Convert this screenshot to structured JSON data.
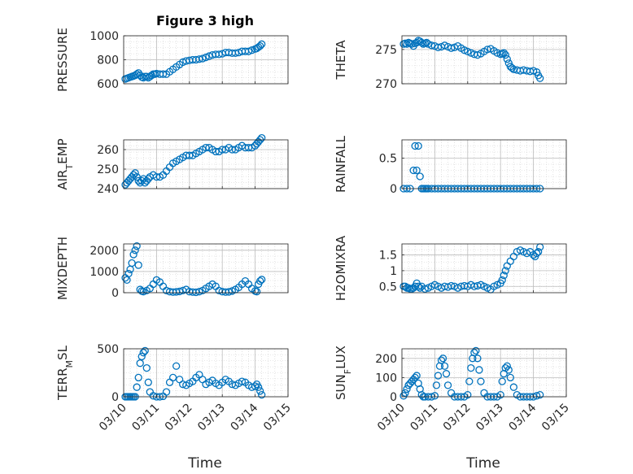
{
  "title": "Figure 3 high",
  "x_axis_label": "Time",
  "x_ticks": [
    "03/10",
    "03/11",
    "03/12",
    "03/13",
    "03/14",
    "03/15"
  ],
  "marker_color": "#0072BD",
  "chart_data": [
    {
      "type": "scatter",
      "ylabel": "PRESSURE",
      "ylabel_sub": "",
      "xlim": [
        0,
        5
      ],
      "ylim": [
        600,
        1000
      ],
      "yticks": [
        600,
        800,
        1000
      ],
      "yticklabels": [
        "600",
        "800",
        "1000"
      ],
      "grid": true,
      "x": [
        0.05,
        0.1,
        0.15,
        0.2,
        0.25,
        0.3,
        0.35,
        0.4,
        0.45,
        0.5,
        0.55,
        0.6,
        0.65,
        0.7,
        0.75,
        0.8,
        0.85,
        0.9,
        0.95,
        1.0,
        1.1,
        1.2,
        1.3,
        1.4,
        1.5,
        1.6,
        1.7,
        1.8,
        1.9,
        2.0,
        2.1,
        2.2,
        2.3,
        2.4,
        2.5,
        2.6,
        2.7,
        2.8,
        2.9,
        3.0,
        3.1,
        3.2,
        3.3,
        3.4,
        3.5,
        3.6,
        3.7,
        3.8,
        3.9,
        4.0,
        4.05,
        4.1,
        4.15,
        4.2
      ],
      "y": [
        640,
        645,
        650,
        655,
        660,
        665,
        670,
        680,
        690,
        670,
        655,
        650,
        660,
        660,
        650,
        660,
        670,
        680,
        680,
        685,
        680,
        680,
        680,
        700,
        720,
        740,
        760,
        780,
        790,
        795,
        800,
        800,
        805,
        810,
        820,
        830,
        840,
        845,
        845,
        850,
        860,
        860,
        855,
        855,
        860,
        870,
        870,
        870,
        880,
        890,
        895,
        905,
        915,
        930
      ]
    },
    {
      "type": "scatter",
      "ylabel": "THETA",
      "ylabel_sub": "",
      "xlim": [
        0,
        5
      ],
      "ylim": [
        270,
        277
      ],
      "yticks": [
        270,
        275
      ],
      "yticklabels": [
        "270",
        "275"
      ],
      "grid": true,
      "x": [
        0.05,
        0.1,
        0.15,
        0.2,
        0.25,
        0.3,
        0.35,
        0.4,
        0.45,
        0.5,
        0.55,
        0.6,
        0.65,
        0.7,
        0.75,
        0.8,
        0.9,
        1.0,
        1.1,
        1.2,
        1.3,
        1.4,
        1.5,
        1.6,
        1.7,
        1.8,
        1.9,
        2.0,
        2.1,
        2.2,
        2.3,
        2.4,
        2.5,
        2.6,
        2.7,
        2.8,
        2.9,
        3.0,
        3.05,
        3.1,
        3.15,
        3.2,
        3.25,
        3.3,
        3.35,
        3.4,
        3.5,
        3.6,
        3.7,
        3.8,
        3.9,
        4.0,
        4.1,
        4.15,
        4.2
      ],
      "y": [
        275.8,
        275.9,
        275.8,
        276.0,
        275.9,
        275.8,
        275.5,
        275.9,
        276.0,
        276.3,
        276.2,
        276.0,
        275.8,
        275.9,
        276.0,
        275.8,
        275.6,
        275.5,
        275.3,
        275.4,
        275.6,
        275.4,
        275.2,
        275.3,
        275.5,
        275.2,
        274.9,
        274.7,
        274.5,
        274.3,
        274.2,
        274.4,
        274.7,
        275.0,
        275.1,
        274.8,
        274.5,
        274.3,
        274.4,
        274.5,
        274.2,
        273.6,
        273.0,
        272.5,
        272.3,
        272.1,
        272.0,
        271.9,
        272.0,
        271.9,
        271.8,
        271.9,
        271.7,
        271.2,
        270.8
      ]
    },
    {
      "type": "scatter",
      "ylabel": "AIR",
      "ylabel_sub": "T",
      "ylabel_rest": "EMP",
      "xlim": [
        0,
        5
      ],
      "ylim": [
        240,
        265
      ],
      "yticks": [
        240,
        250,
        260
      ],
      "yticklabels": [
        "240",
        "250",
        "260"
      ],
      "grid": true,
      "x": [
        0.05,
        0.1,
        0.15,
        0.2,
        0.25,
        0.3,
        0.35,
        0.4,
        0.45,
        0.5,
        0.55,
        0.6,
        0.65,
        0.7,
        0.75,
        0.8,
        0.9,
        1.0,
        1.1,
        1.2,
        1.3,
        1.4,
        1.5,
        1.6,
        1.7,
        1.8,
        1.9,
        2.0,
        2.1,
        2.2,
        2.3,
        2.4,
        2.5,
        2.6,
        2.7,
        2.8,
        2.9,
        3.0,
        3.1,
        3.2,
        3.3,
        3.4,
        3.5,
        3.6,
        3.7,
        3.8,
        3.9,
        4.0,
        4.05,
        4.1,
        4.15,
        4.2
      ],
      "y": [
        242,
        243,
        244,
        245,
        246,
        247,
        248,
        246,
        244,
        243,
        244,
        245,
        243,
        244,
        245,
        246,
        247,
        246,
        246,
        247,
        249,
        251,
        253,
        254,
        255,
        256,
        257,
        257,
        257,
        258,
        259,
        260,
        261,
        261,
        260,
        259,
        259,
        260,
        260,
        261,
        260,
        260,
        261,
        262,
        261,
        261,
        261,
        262,
        263,
        264,
        265,
        266
      ]
    },
    {
      "type": "scatter",
      "ylabel": "RAINFALL",
      "ylabel_sub": "",
      "xlim": [
        0,
        5
      ],
      "ylim": [
        0,
        0.8
      ],
      "yticks": [
        0,
        0.5
      ],
      "yticklabels": [
        "0",
        "0.5"
      ],
      "grid": true,
      "x": [
        0.05,
        0.15,
        0.25,
        0.35,
        0.4,
        0.45,
        0.5,
        0.55,
        0.6,
        0.65,
        0.7,
        0.75,
        0.8,
        0.9,
        1.0,
        1.1,
        1.2,
        1.3,
        1.4,
        1.5,
        1.6,
        1.7,
        1.8,
        1.9,
        2.0,
        2.1,
        2.2,
        2.3,
        2.4,
        2.5,
        2.6,
        2.7,
        2.8,
        2.9,
        3.0,
        3.1,
        3.2,
        3.3,
        3.4,
        3.5,
        3.6,
        3.7,
        3.8,
        3.9,
        4.0,
        4.1,
        4.2
      ],
      "y": [
        0,
        0,
        0,
        0.3,
        0.7,
        0.3,
        0.7,
        0.2,
        0,
        0,
        0,
        0,
        0,
        0,
        0,
        0,
        0,
        0,
        0,
        0,
        0,
        0,
        0,
        0,
        0,
        0,
        0,
        0,
        0,
        0,
        0,
        0,
        0,
        0,
        0,
        0,
        0,
        0,
        0,
        0,
        0,
        0,
        0,
        0,
        0,
        0,
        0
      ]
    },
    {
      "type": "scatter",
      "ylabel": "MIXDEPTH",
      "ylabel_sub": "",
      "xlim": [
        0,
        5
      ],
      "ylim": [
        0,
        2300
      ],
      "yticks": [
        0,
        1000,
        2000
      ],
      "yticklabels": [
        "0",
        "1000",
        "2000"
      ],
      "grid": true,
      "x": [
        0.05,
        0.1,
        0.15,
        0.2,
        0.25,
        0.3,
        0.35,
        0.4,
        0.45,
        0.5,
        0.55,
        0.6,
        0.7,
        0.8,
        0.9,
        1.0,
        1.1,
        1.2,
        1.3,
        1.4,
        1.5,
        1.6,
        1.7,
        1.8,
        1.9,
        2.0,
        2.1,
        2.2,
        2.3,
        2.4,
        2.5,
        2.6,
        2.7,
        2.8,
        2.9,
        3.0,
        3.1,
        3.2,
        3.3,
        3.4,
        3.5,
        3.6,
        3.7,
        3.8,
        3.9,
        4.0,
        4.05,
        4.1,
        4.15,
        4.2
      ],
      "y": [
        700,
        600,
        900,
        1100,
        1400,
        1800,
        2000,
        2200,
        1300,
        150,
        80,
        50,
        100,
        200,
        400,
        600,
        500,
        300,
        100,
        50,
        30,
        40,
        60,
        100,
        150,
        50,
        30,
        20,
        50,
        100,
        200,
        300,
        400,
        300,
        100,
        50,
        30,
        40,
        80,
        150,
        250,
        400,
        550,
        400,
        200,
        80,
        50,
        400,
        550,
        620
      ]
    },
    {
      "type": "scatter",
      "ylabel": "H2OMIXRA",
      "ylabel_sub": "",
      "xlim": [
        0,
        5
      ],
      "ylim": [
        0.3,
        1.85
      ],
      "yticks": [
        0.5,
        1,
        1.5
      ],
      "yticklabels": [
        "0.5",
        "1",
        "1.5"
      ],
      "grid": true,
      "x": [
        0.05,
        0.1,
        0.15,
        0.2,
        0.25,
        0.3,
        0.35,
        0.4,
        0.45,
        0.5,
        0.55,
        0.6,
        0.7,
        0.8,
        0.9,
        1.0,
        1.1,
        1.2,
        1.3,
        1.4,
        1.5,
        1.6,
        1.7,
        1.8,
        1.9,
        2.0,
        2.1,
        2.2,
        2.3,
        2.4,
        2.5,
        2.6,
        2.7,
        2.8,
        2.9,
        3.0,
        3.05,
        3.1,
        3.15,
        3.2,
        3.3,
        3.4,
        3.5,
        3.6,
        3.7,
        3.8,
        3.9,
        4.0,
        4.05,
        4.1,
        4.15,
        4.2
      ],
      "y": [
        0.5,
        0.5,
        0.45,
        0.45,
        0.42,
        0.42,
        0.45,
        0.5,
        0.6,
        0.5,
        0.45,
        0.5,
        0.42,
        0.45,
        0.5,
        0.55,
        0.5,
        0.45,
        0.5,
        0.48,
        0.52,
        0.5,
        0.45,
        0.5,
        0.52,
        0.5,
        0.55,
        0.5,
        0.52,
        0.55,
        0.5,
        0.45,
        0.4,
        0.5,
        0.55,
        0.6,
        0.7,
        0.85,
        1.0,
        1.15,
        1.3,
        1.45,
        1.6,
        1.65,
        1.6,
        1.55,
        1.6,
        1.5,
        1.45,
        1.55,
        1.6,
        1.75
      ]
    },
    {
      "type": "scatter",
      "ylabel": "TERR",
      "ylabel_sub": "M",
      "ylabel_rest": "SL",
      "xlim": [
        0,
        5
      ],
      "ylim": [
        0,
        500
      ],
      "yticks": [
        0,
        500
      ],
      "yticklabels": [
        "0",
        "500"
      ],
      "grid": true,
      "x": [
        0.05,
        0.1,
        0.15,
        0.2,
        0.25,
        0.3,
        0.35,
        0.4,
        0.45,
        0.5,
        0.55,
        0.6,
        0.65,
        0.7,
        0.75,
        0.8,
        0.9,
        1.0,
        1.1,
        1.2,
        1.3,
        1.4,
        1.5,
        1.6,
        1.7,
        1.8,
        1.9,
        2.0,
        2.1,
        2.2,
        2.3,
        2.4,
        2.5,
        2.6,
        2.7,
        2.8,
        2.9,
        3.0,
        3.1,
        3.2,
        3.3,
        3.4,
        3.5,
        3.6,
        3.7,
        3.8,
        3.9,
        4.0,
        4.05,
        4.1,
        4.15,
        4.2
      ],
      "y": [
        0,
        0,
        0,
        0,
        0,
        0,
        0,
        100,
        200,
        350,
        420,
        460,
        480,
        300,
        150,
        50,
        10,
        0,
        0,
        5,
        50,
        150,
        200,
        320,
        180,
        130,
        120,
        140,
        160,
        200,
        230,
        180,
        130,
        150,
        170,
        140,
        120,
        150,
        180,
        160,
        130,
        120,
        140,
        160,
        150,
        120,
        100,
        110,
        130,
        100,
        60,
        20
      ]
    },
    {
      "type": "scatter",
      "ylabel": "SUN",
      "ylabel_sub": "F",
      "ylabel_rest": "LUX",
      "xlim": [
        0,
        5
      ],
      "ylim": [
        0,
        250
      ],
      "yticks": [
        0,
        100,
        200
      ],
      "yticklabels": [
        "0",
        "100",
        "200"
      ],
      "grid": true,
      "x": [
        0.05,
        0.1,
        0.15,
        0.2,
        0.25,
        0.3,
        0.35,
        0.4,
        0.45,
        0.5,
        0.55,
        0.6,
        0.65,
        0.7,
        0.8,
        0.9,
        1.0,
        1.05,
        1.1,
        1.15,
        1.2,
        1.25,
        1.3,
        1.35,
        1.4,
        1.5,
        1.6,
        1.7,
        1.8,
        1.9,
        2.0,
        2.05,
        2.1,
        2.15,
        2.2,
        2.25,
        2.3,
        2.35,
        2.4,
        2.5,
        2.6,
        2.7,
        2.8,
        2.9,
        3.0,
        3.05,
        3.1,
        3.15,
        3.2,
        3.25,
        3.3,
        3.4,
        3.5,
        3.6,
        3.7,
        3.8,
        3.9,
        4.0,
        4.1,
        4.2
      ],
      "y": [
        5,
        20,
        40,
        60,
        70,
        80,
        90,
        100,
        110,
        70,
        40,
        10,
        0,
        0,
        0,
        0,
        5,
        60,
        110,
        160,
        190,
        200,
        160,
        120,
        60,
        20,
        0,
        0,
        0,
        0,
        10,
        80,
        150,
        200,
        230,
        240,
        200,
        140,
        80,
        20,
        0,
        0,
        0,
        0,
        10,
        80,
        120,
        150,
        160,
        140,
        100,
        50,
        10,
        0,
        0,
        0,
        0,
        0,
        5,
        10
      ]
    }
  ]
}
